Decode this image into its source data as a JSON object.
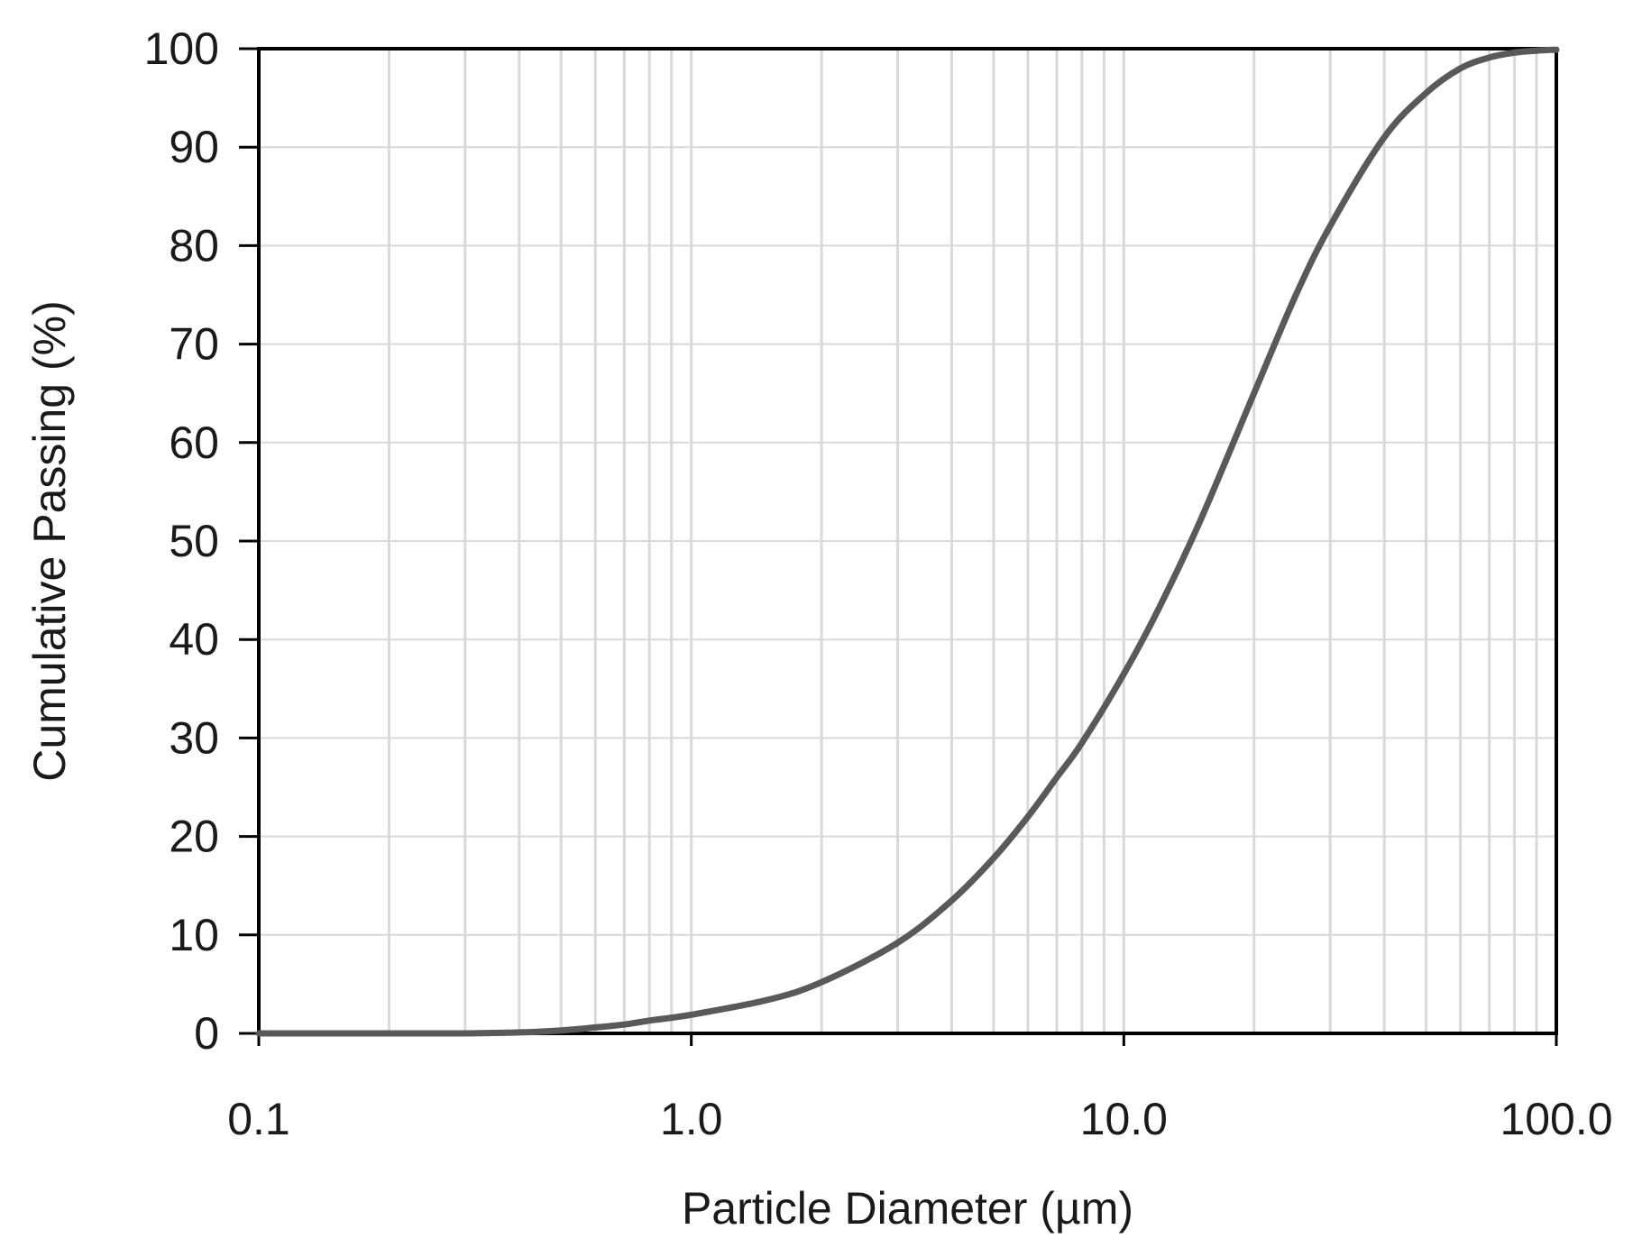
{
  "chart_data": {
    "type": "line",
    "title": "",
    "xlabel": "Particle Diameter (µm)",
    "ylabel": "Cumulative Passing (%)",
    "x_scale": "log",
    "xlim": [
      0.1,
      100
    ],
    "ylim": [
      0,
      100
    ],
    "x_ticks": [
      {
        "value": 0.1,
        "label": "0.1"
      },
      {
        "value": 1,
        "label": "1.0"
      },
      {
        "value": 10,
        "label": "10.0"
      },
      {
        "value": 100,
        "label": "100.0"
      }
    ],
    "y_ticks": [
      {
        "value": 0,
        "label": "0"
      },
      {
        "value": 10,
        "label": "10"
      },
      {
        "value": 20,
        "label": "20"
      },
      {
        "value": 30,
        "label": "30"
      },
      {
        "value": 40,
        "label": "40"
      },
      {
        "value": 50,
        "label": "50"
      },
      {
        "value": 60,
        "label": "60"
      },
      {
        "value": 70,
        "label": "70"
      },
      {
        "value": 80,
        "label": "80"
      },
      {
        "value": 90,
        "label": "90"
      },
      {
        "value": 100,
        "label": "100"
      }
    ],
    "grid": {
      "x_major": true,
      "x_minor": true,
      "y_major": true
    },
    "legend": "none",
    "series": [
      {
        "color": "#595959",
        "x": [
          0.1,
          0.2,
          0.3,
          0.4,
          0.5,
          0.6,
          0.7,
          0.8,
          1.0,
          1.5,
          2.0,
          3.0,
          4.0,
          5.0,
          6.0,
          7.0,
          8.0,
          10.0,
          12.0,
          15.0,
          20.0,
          25.0,
          30.0,
          40.0,
          50.0,
          60.0,
          70.0,
          80.0,
          90.0,
          100.0
        ],
        "y": [
          0.0,
          0.0,
          0.0,
          0.1,
          0.3,
          0.6,
          0.9,
          1.3,
          1.9,
          3.4,
          5.2,
          9.2,
          13.5,
          17.8,
          22.0,
          26.0,
          29.5,
          36.5,
          43.0,
          52.0,
          65.0,
          75.0,
          82.0,
          91.0,
          95.5,
          98.0,
          99.1,
          99.6,
          99.8,
          99.9
        ]
      }
    ],
    "colors": {
      "grid": "#d9d9d9",
      "axis": "#000000",
      "line": "#595959"
    }
  }
}
